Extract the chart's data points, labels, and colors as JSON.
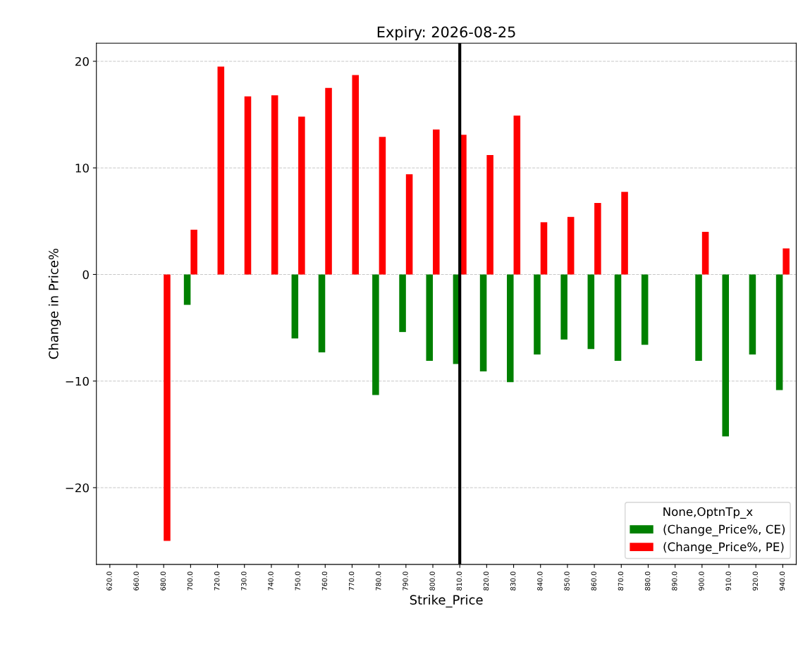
{
  "chart_data": {
    "type": "bar",
    "title": "Expiry: 2026-08-25",
    "xlabel": "Strike_Price",
    "ylabel": "Change in Price%",
    "legend_title": "None,OptnTp_x",
    "categories": [
      "620.0",
      "660.0",
      "680.0",
      "700.0",
      "720.0",
      "730.0",
      "740.0",
      "750.0",
      "760.0",
      "770.0",
      "780.0",
      "790.0",
      "800.0",
      "810.0",
      "820.0",
      "830.0",
      "840.0",
      "850.0",
      "860.0",
      "870.0",
      "880.0",
      "890.0",
      "900.0",
      "910.0",
      "920.0",
      "940.0"
    ],
    "series": [
      {
        "name": "(Change_Price%, CE)",
        "color": "#008000",
        "values": [
          null,
          null,
          null,
          -2.85,
          null,
          null,
          null,
          -6.0,
          -7.3,
          null,
          -11.3,
          -5.4,
          -8.1,
          -8.4,
          -9.1,
          -10.1,
          -7.5,
          -6.1,
          -7.0,
          -8.1,
          -6.6,
          null,
          -8.1,
          -15.2,
          -7.5,
          -10.85
        ]
      },
      {
        "name": "(Change_Price%, PE)",
        "color": "#ff0000",
        "values": [
          null,
          null,
          -25.0,
          4.2,
          19.5,
          16.7,
          16.8,
          14.8,
          17.5,
          18.7,
          12.9,
          9.4,
          13.6,
          13.1,
          11.2,
          14.9,
          4.9,
          5.4,
          6.7,
          7.75,
          null,
          null,
          4.0,
          null,
          null,
          2.45
        ]
      }
    ],
    "ylim": [
      -27.2,
      21.7
    ],
    "yticks": [
      {
        "value": -20,
        "label": "−20"
      },
      {
        "value": -10,
        "label": "−10"
      },
      0,
      10,
      20
    ],
    "grid": "y",
    "legend": "bottom right",
    "ref_lines": [
      {
        "axis": "x",
        "value": "810.0",
        "color": "#000000",
        "line_style": "solid"
      }
    ]
  }
}
